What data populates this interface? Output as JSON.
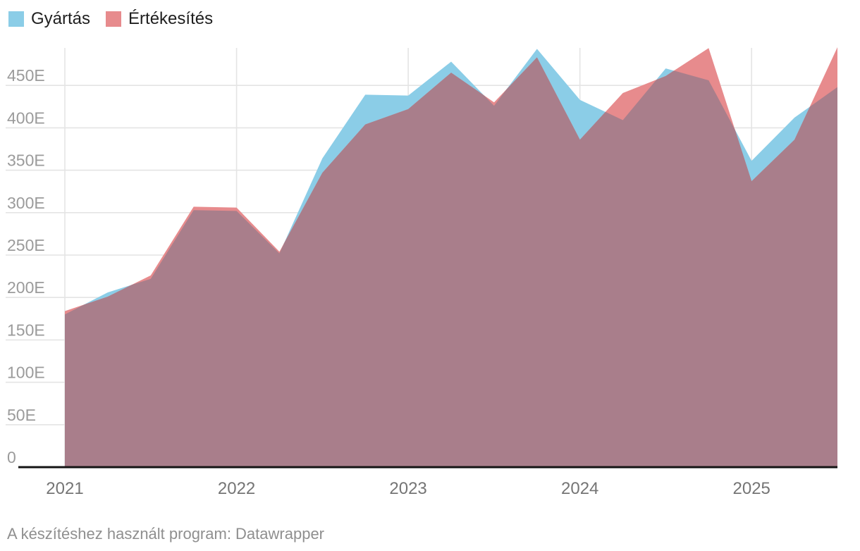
{
  "legend": {
    "items": [
      {
        "label": "Gyártás"
      },
      {
        "label": "Értékesítés"
      }
    ]
  },
  "footer": {
    "text": "A készítéshez használt program: Datawrapper"
  },
  "colors": {
    "background": "#FFFFFF",
    "grid": "#E4E4E4",
    "baseline": "#151515",
    "axis_label": "#9B9B9B",
    "year_label": "#757575",
    "legend_text": "#1F1F1F",
    "footer_text": "#8F8F8F"
  },
  "chart_data": {
    "type": "area",
    "title": "",
    "x_labels": [
      "2021 Q1",
      "2021 Q2",
      "2021 Q3",
      "2021 Q4",
      "2022 Q1",
      "2022 Q2",
      "2022 Q3",
      "2022 Q4",
      "2023 Q1",
      "2023 Q2",
      "2023 Q3",
      "2023 Q4",
      "2024 Q1",
      "2024 Q2",
      "2024 Q3",
      "2024 Q4",
      "2025 Q1",
      "2025 Q2",
      "2025 Q3"
    ],
    "series": [
      {
        "name": "Gyártás",
        "color": "#8BCDE7",
        "values": [
          180,
          206,
          222,
          303,
          302,
          252,
          364,
          439,
          438,
          478,
          426,
          493,
          433,
          409,
          470,
          456,
          361,
          412,
          448
        ]
      },
      {
        "name": "Értékesítés",
        "color": "#E78B8D",
        "values": [
          184,
          201,
          226,
          307,
          306,
          254,
          347,
          404,
          422,
          465,
          430,
          483,
          386,
          441,
          461,
          494,
          337,
          386,
          495
        ]
      }
    ],
    "overlap_color": "#A97E8B",
    "values_unit_suffix": "E",
    "ylim": [
      0,
      495
    ],
    "grid": true,
    "legend_position": "top-left",
    "y_ticks": [
      {
        "value": 0,
        "label": "0"
      },
      {
        "value": 50,
        "label": "50E"
      },
      {
        "value": 100,
        "label": "100E"
      },
      {
        "value": 150,
        "label": "150E"
      },
      {
        "value": 200,
        "label": "200E"
      },
      {
        "value": 250,
        "label": "250E"
      },
      {
        "value": 300,
        "label": "300E"
      },
      {
        "value": 350,
        "label": "350E"
      },
      {
        "value": 400,
        "label": "400E"
      },
      {
        "value": 450,
        "label": "450E"
      }
    ],
    "x_ticks": [
      {
        "index": 0,
        "label": "2021"
      },
      {
        "index": 4,
        "label": "2022"
      },
      {
        "index": 8,
        "label": "2023"
      },
      {
        "index": 12,
        "label": "2024"
      },
      {
        "index": 16,
        "label": "2025"
      }
    ]
  }
}
